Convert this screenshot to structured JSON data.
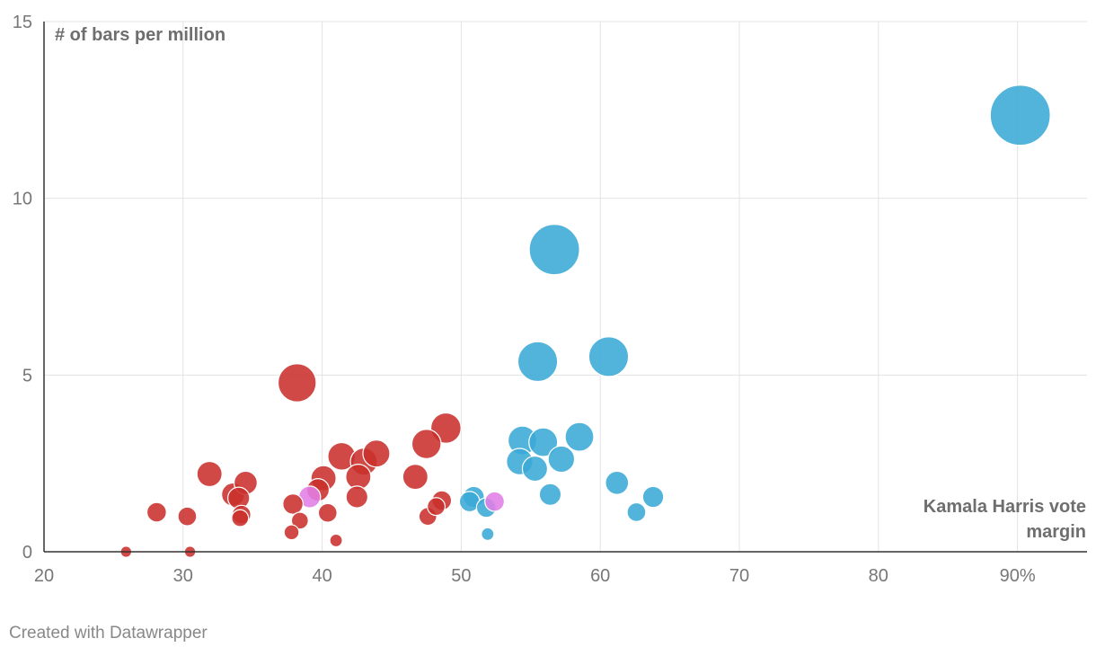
{
  "chart_data": {
    "type": "scatter",
    "xlabel": "Kamala Harris vote margin",
    "ylabel": "# of bars per million",
    "xlim": [
      20,
      95
    ],
    "ylim": [
      0,
      15
    ],
    "x_ticks": [
      20,
      30,
      40,
      50,
      60,
      70,
      80,
      90
    ],
    "x_tick_labels": [
      "20",
      "30",
      "40",
      "50",
      "60",
      "70",
      "80",
      "90%"
    ],
    "y_ticks": [
      0,
      5,
      10,
      15
    ],
    "y_tick_labels": [
      "0",
      "5",
      "10",
      "15"
    ],
    "grid": true,
    "colors": {
      "red": "#c9302c",
      "blue": "#3aa9d6",
      "purple": "#e17ee6"
    },
    "points": [
      {
        "x": 25.9,
        "y": 0.0,
        "size": 0.2,
        "color": "red"
      },
      {
        "x": 30.5,
        "y": 0.0,
        "size": 0.2,
        "color": "red"
      },
      {
        "x": 28.1,
        "y": 1.12,
        "size": 0.6,
        "color": "red"
      },
      {
        "x": 30.3,
        "y": 1.0,
        "size": 0.55,
        "color": "red"
      },
      {
        "x": 31.9,
        "y": 2.2,
        "size": 1.0,
        "color": "red"
      },
      {
        "x": 33.6,
        "y": 1.62,
        "size": 0.85,
        "color": "red"
      },
      {
        "x": 34.0,
        "y": 1.52,
        "size": 0.75,
        "color": "red"
      },
      {
        "x": 34.2,
        "y": 1.05,
        "size": 0.55,
        "color": "red"
      },
      {
        "x": 34.1,
        "y": 0.95,
        "size": 0.45,
        "color": "red"
      },
      {
        "x": 34.5,
        "y": 1.95,
        "size": 0.85,
        "color": "red"
      },
      {
        "x": 37.8,
        "y": 0.55,
        "size": 0.35,
        "color": "red"
      },
      {
        "x": 38.4,
        "y": 0.88,
        "size": 0.45,
        "color": "red"
      },
      {
        "x": 37.9,
        "y": 1.35,
        "size": 0.65,
        "color": "red"
      },
      {
        "x": 38.2,
        "y": 4.78,
        "size": 2.3,
        "color": "red"
      },
      {
        "x": 39.1,
        "y": 1.55,
        "size": 0.75,
        "color": "purple"
      },
      {
        "x": 39.7,
        "y": 1.75,
        "size": 0.8,
        "color": "red"
      },
      {
        "x": 40.1,
        "y": 2.08,
        "size": 1.0,
        "color": "red"
      },
      {
        "x": 40.4,
        "y": 1.1,
        "size": 0.55,
        "color": "red"
      },
      {
        "x": 41.0,
        "y": 0.32,
        "size": 0.25,
        "color": "red"
      },
      {
        "x": 41.4,
        "y": 2.7,
        "size": 1.2,
        "color": "red"
      },
      {
        "x": 42.5,
        "y": 1.55,
        "size": 0.75,
        "color": "red"
      },
      {
        "x": 42.6,
        "y": 2.12,
        "size": 1.0,
        "color": "red"
      },
      {
        "x": 43.0,
        "y": 2.55,
        "size": 1.15,
        "color": "red"
      },
      {
        "x": 43.9,
        "y": 2.78,
        "size": 1.15,
        "color": "red"
      },
      {
        "x": 46.7,
        "y": 2.12,
        "size": 1.0,
        "color": "red"
      },
      {
        "x": 47.5,
        "y": 3.05,
        "size": 1.35,
        "color": "red"
      },
      {
        "x": 47.6,
        "y": 1.0,
        "size": 0.5,
        "color": "red"
      },
      {
        "x": 48.2,
        "y": 1.28,
        "size": 0.5,
        "color": "red"
      },
      {
        "x": 48.6,
        "y": 1.45,
        "size": 0.6,
        "color": "red"
      },
      {
        "x": 48.9,
        "y": 3.5,
        "size": 1.45,
        "color": "red"
      },
      {
        "x": 50.6,
        "y": 1.42,
        "size": 0.65,
        "color": "blue"
      },
      {
        "x": 50.9,
        "y": 1.55,
        "size": 0.7,
        "color": "blue"
      },
      {
        "x": 51.8,
        "y": 1.25,
        "size": 0.6,
        "color": "blue"
      },
      {
        "x": 51.9,
        "y": 0.5,
        "size": 0.25,
        "color": "blue"
      },
      {
        "x": 52.4,
        "y": 1.42,
        "size": 0.6,
        "color": "purple"
      },
      {
        "x": 54.2,
        "y": 2.55,
        "size": 1.1,
        "color": "blue"
      },
      {
        "x": 54.4,
        "y": 3.15,
        "size": 1.3,
        "color": "blue"
      },
      {
        "x": 55.3,
        "y": 2.35,
        "size": 1.0,
        "color": "blue"
      },
      {
        "x": 55.9,
        "y": 3.1,
        "size": 1.3,
        "color": "blue"
      },
      {
        "x": 55.5,
        "y": 5.38,
        "size": 2.5,
        "color": "blue"
      },
      {
        "x": 56.4,
        "y": 1.62,
        "size": 0.75,
        "color": "blue"
      },
      {
        "x": 56.7,
        "y": 8.55,
        "size": 4.0,
        "color": "blue"
      },
      {
        "x": 57.2,
        "y": 2.62,
        "size": 1.1,
        "color": "blue"
      },
      {
        "x": 58.5,
        "y": 3.25,
        "size": 1.3,
        "color": "blue"
      },
      {
        "x": 60.6,
        "y": 5.52,
        "size": 2.5,
        "color": "blue"
      },
      {
        "x": 61.2,
        "y": 1.95,
        "size": 0.85,
        "color": "blue"
      },
      {
        "x": 62.6,
        "y": 1.12,
        "size": 0.55,
        "color": "blue"
      },
      {
        "x": 63.8,
        "y": 1.55,
        "size": 0.7,
        "color": "blue"
      },
      {
        "x": 90.2,
        "y": 12.35,
        "size": 5.7,
        "color": "blue"
      }
    ]
  },
  "footer": {
    "credit": "Created with Datawrapper"
  }
}
